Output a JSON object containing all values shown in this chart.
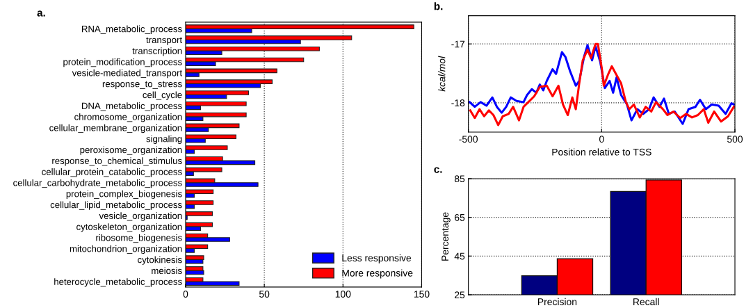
{
  "chart_data": [
    {
      "type": "bar",
      "title": "a.",
      "orientation": "horizontal",
      "grid": "x",
      "legend": "bottom right",
      "categories": [
        "RNA_metabolic_process",
        "transport",
        "transcription",
        "protein_modification_process",
        "vesicle-mediated_transport",
        "response_to_stress",
        "cell_cycle",
        "DNA_metabolic_process",
        "chromosome_organization",
        "cellular_membrane_organization",
        "signaling",
        "peroxisome_organization",
        "response_to_chemical_stimulus",
        "cellular_protein_catabolic_process",
        "cellular_carbohydrate_metabolic_process",
        "protein_complex_biogenesis",
        "cellular_lipid_metabolic_process",
        "vesicle_organization",
        "cytoskeleton_organization",
        "ribosome_biogenesis",
        "mitochondrion_organization",
        "cytokinesis",
        "meiosis",
        "heterocycle_metabolic_process"
      ],
      "series": [
        {
          "name": "Less responsive",
          "color": "#0000ff",
          "values": [
            42,
            73,
            23,
            19,
            8.5,
            47.5,
            26,
            9.5,
            11,
            14.5,
            12.5,
            5.5,
            44,
            5,
            46,
            5.5,
            5.5,
            1,
            9.5,
            28,
            5.5,
            11,
            11.5,
            34
          ]
        },
        {
          "name": "More responsive",
          "color": "#ff0000",
          "values": [
            145,
            105.5,
            85,
            75,
            58,
            55,
            40,
            38.5,
            38.5,
            34,
            32,
            26.5,
            23.5,
            23,
            18.5,
            17.5,
            17.5,
            17,
            17,
            14,
            14,
            11.5,
            11,
            11
          ]
        }
      ],
      "xlim": [
        0,
        150
      ],
      "xticks": [
        0,
        50,
        100,
        150
      ]
    },
    {
      "type": "line",
      "title": "b.",
      "xlabel": "Position relative to TSS",
      "ylabel": "kcal/mol",
      "grid": true,
      "xlim": [
        -500,
        500
      ],
      "xticks": [
        -500,
        0,
        500
      ],
      "ylim": [
        -18.5,
        -16.52
      ],
      "yticks": [
        -18,
        -17
      ],
      "series": [
        {
          "color": "#0000ff",
          "x": [
            -495,
            -476,
            -454,
            -432,
            -410,
            -393,
            -375,
            -358,
            -341,
            -319,
            -293,
            -280,
            -262,
            -245,
            -232,
            -219,
            -206,
            -184,
            -171,
            -149,
            -136,
            -118,
            -97,
            -84,
            -66,
            -53,
            -36,
            -23,
            -5,
            12,
            30,
            43,
            56,
            73,
            95,
            112,
            134,
            156,
            178,
            195,
            217,
            234,
            252,
            274,
            304,
            326,
            352,
            369,
            391,
            413,
            439,
            465,
            487,
            496
          ],
          "values": [
            -17.99,
            -18.07,
            -17.99,
            -18.05,
            -17.91,
            -18.07,
            -18.17,
            -18.07,
            -17.91,
            -17.97,
            -17.99,
            -17.87,
            -17.77,
            -17.83,
            -17.69,
            -17.79,
            -17.63,
            -17.43,
            -17.51,
            -17.14,
            -17.22,
            -17.47,
            -17.71,
            -17.63,
            -17.22,
            -17.02,
            -17.28,
            -17.04,
            -17.31,
            -17.75,
            -17.63,
            -17.83,
            -17.57,
            -17.87,
            -18.03,
            -18.3,
            -18.11,
            -18.19,
            -18.11,
            -17.91,
            -18.07,
            -17.93,
            -18.19,
            -18.15,
            -18.36,
            -18.11,
            -18.07,
            -17.95,
            -18.11,
            -18.03,
            -18.05,
            -18.19,
            -18.01,
            -18.03
          ]
        },
        {
          "color": "#ff0000",
          "x": [
            -493,
            -476,
            -458,
            -441,
            -423,
            -406,
            -388,
            -371,
            -349,
            -332,
            -310,
            -293,
            -275,
            -253,
            -232,
            -206,
            -184,
            -162,
            -145,
            -127,
            -110,
            -97,
            -84,
            -71,
            -53,
            -40,
            -23,
            -14,
            1,
            8,
            25,
            38,
            56,
            73,
            91,
            104,
            121,
            143,
            165,
            186,
            204,
            230,
            247,
            269,
            295,
            317,
            339,
            361,
            383,
            400,
            422,
            448,
            474,
            496
          ],
          "values": [
            -18.13,
            -18.26,
            -18.11,
            -18.23,
            -18.13,
            -18.21,
            -18.38,
            -18.23,
            -18.19,
            -18.07,
            -18.3,
            -18.07,
            -17.99,
            -17.89,
            -17.73,
            -17.71,
            -17.89,
            -17.71,
            -18.03,
            -18.21,
            -17.91,
            -18.11,
            -17.67,
            -17.28,
            -17.1,
            -17.24,
            -17.0,
            -17.0,
            -17.43,
            -17.71,
            -17.51,
            -17.38,
            -17.53,
            -17.67,
            -17.99,
            -18.11,
            -18.03,
            -18.25,
            -18.07,
            -18.15,
            -17.99,
            -18.11,
            -18.21,
            -18.15,
            -18.26,
            -18.19,
            -18.25,
            -18.21,
            -18.11,
            -18.34,
            -18.15,
            -18.32,
            -18.23,
            -18.07
          ]
        }
      ]
    },
    {
      "type": "bar",
      "title": "c.",
      "ylabel": "Percentage",
      "grid": "y",
      "categories": [
        "Precision",
        "Recall"
      ],
      "ylim": [
        25,
        85
      ],
      "yticks": [
        25,
        45,
        65,
        85
      ],
      "series": [
        {
          "color": "#000080",
          "values": [
            34.8,
            78.4
          ]
        },
        {
          "color": "#ff0000",
          "values": [
            43.6,
            84.3
          ]
        }
      ]
    }
  ]
}
